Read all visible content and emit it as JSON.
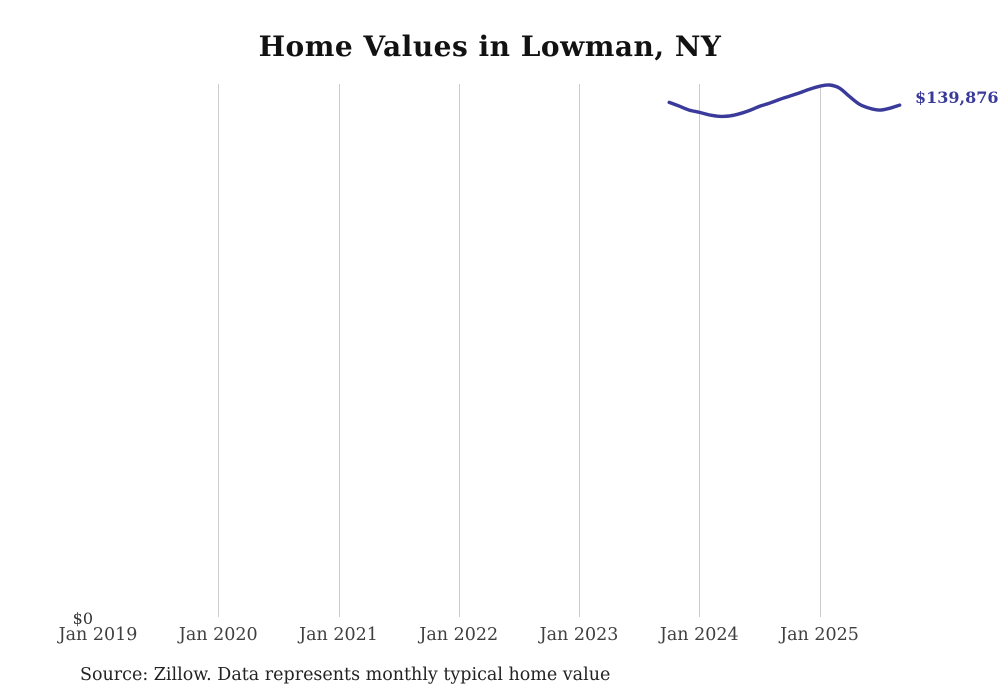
{
  "chart": {
    "title": "Home Values in Lowman, NY",
    "source_note": "Source: Zillow. Data represents monthly typical home value",
    "end_label": "$139,876",
    "y_zero_label": "$0",
    "colors": {
      "line": "#3a3a9b",
      "end_label": "#3a3a9b",
      "gridline": "#cccccc",
      "title": "#121212",
      "axis_text": "#3f3f3f",
      "source_text": "#222222"
    }
  },
  "chart_data": {
    "type": "line",
    "title": "Home Values in Lowman, NY",
    "xlabel": "",
    "ylabel": "",
    "xticks": [
      "Jan 2019",
      "Jan 2020",
      "Jan 2021",
      "Jan 2022",
      "Jan 2023",
      "Jan 2024",
      "Jan 2025"
    ],
    "yticks": [
      "$0"
    ],
    "ylim": [
      0,
      145600
    ],
    "xlim_months": [
      "2019-01",
      "2025-07"
    ],
    "grid": {
      "vertical": true,
      "horizontal": false
    },
    "legend": "none",
    "annotation_end_label": "$139,876",
    "series": [
      {
        "name": "Monthly typical home value",
        "x": [
          "2023-10",
          "2023-11",
          "2023-12",
          "2024-01",
          "2024-02",
          "2024-03",
          "2024-04",
          "2024-05",
          "2024-06",
          "2024-07",
          "2024-08",
          "2024-09",
          "2024-10",
          "2024-11",
          "2024-12",
          "2025-01",
          "2025-02",
          "2025-03",
          "2025-04",
          "2025-05",
          "2025-06",
          "2025-07",
          "2025-08",
          "2025-09"
        ],
        "values": [
          140600,
          139600,
          138500,
          137900,
          137200,
          136800,
          136900,
          137500,
          138400,
          139500,
          140400,
          141400,
          142300,
          143200,
          144200,
          145000,
          145360,
          144500,
          142200,
          140100,
          139000,
          138500,
          139000,
          139876
        ]
      }
    ]
  }
}
